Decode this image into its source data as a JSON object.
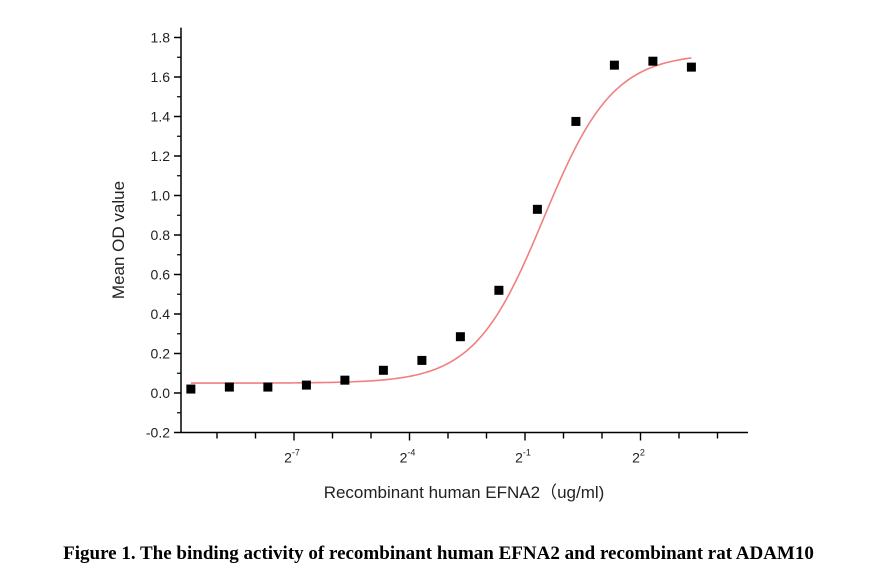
{
  "caption": "Figure 1. The binding activity of recombinant human EFNA2 and recombinant rat ADAM10",
  "chart_data": {
    "type": "scatter",
    "xlabel": "Recombinant human  EFNA2（ug/ml)",
    "ylabel": "Mean OD value",
    "x_scale": "log2",
    "x_major_ticks": [
      {
        "exp": "-7",
        "value": 0.0078125
      },
      {
        "exp": "-4",
        "value": 0.0625
      },
      {
        "exp": "-1",
        "value": 0.5
      },
      {
        "exp": "2",
        "value": 4
      }
    ],
    "ylim": [
      -0.2,
      1.85
    ],
    "yticks": [
      "-0.2",
      "0.0",
      "0.2",
      "0.4",
      "0.6",
      "0.8",
      "1.0",
      "1.2",
      "1.4",
      "1.6",
      "1.8"
    ],
    "grid": false,
    "series": [
      {
        "marker": "square",
        "color": "#000000",
        "x": [
          0.00122,
          0.00244,
          0.00488,
          0.00977,
          0.01953,
          0.03906,
          0.07813,
          0.15625,
          0.3125,
          0.625,
          1.25,
          2.5,
          5,
          10
        ],
        "y": [
          0.02,
          0.03,
          0.03,
          0.04,
          0.065,
          0.115,
          0.165,
          0.285,
          0.52,
          0.93,
          1.375,
          1.66,
          1.68,
          1.65
        ]
      }
    ],
    "fit_curve": {
      "color": "#f08080",
      "model": "four-parameter logistic",
      "bottom": 0.05,
      "top": 1.72,
      "ec50": 0.7,
      "hill": 1.6
    }
  }
}
